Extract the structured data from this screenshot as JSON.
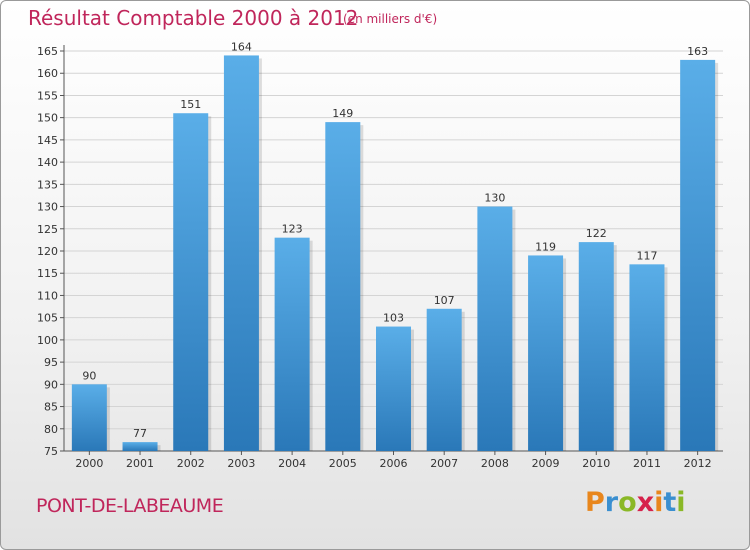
{
  "title": "Résultat Comptable 2000 à 2012",
  "subtitle": "(en milliers d'€)",
  "town": "PONT-DE-LABEAUME",
  "logo": {
    "letters": [
      "P",
      "r",
      "o",
      "x",
      "i",
      "t",
      "i"
    ],
    "colors": [
      "#e8861c",
      "#3a8fd0",
      "#8ab826",
      "#d6224b",
      "#e8861c",
      "#3a8fd0",
      "#8ab826"
    ]
  },
  "colors": {
    "title": "#c0265b",
    "bar_top": "#5aaee8",
    "bar_bottom": "#2a78b8"
  },
  "chart_data": {
    "type": "bar",
    "categories": [
      "2000",
      "2001",
      "2002",
      "2003",
      "2004",
      "2005",
      "2006",
      "2007",
      "2008",
      "2009",
      "2010",
      "2011",
      "2012"
    ],
    "values": [
      90,
      77,
      151,
      164,
      123,
      149,
      103,
      107,
      130,
      119,
      122,
      117,
      163
    ],
    "ylim": [
      75,
      165
    ],
    "yticks": [
      75,
      80,
      85,
      90,
      95,
      100,
      105,
      110,
      115,
      120,
      125,
      130,
      135,
      140,
      145,
      150,
      155,
      160,
      165
    ],
    "grid": true,
    "data_labels": true
  }
}
